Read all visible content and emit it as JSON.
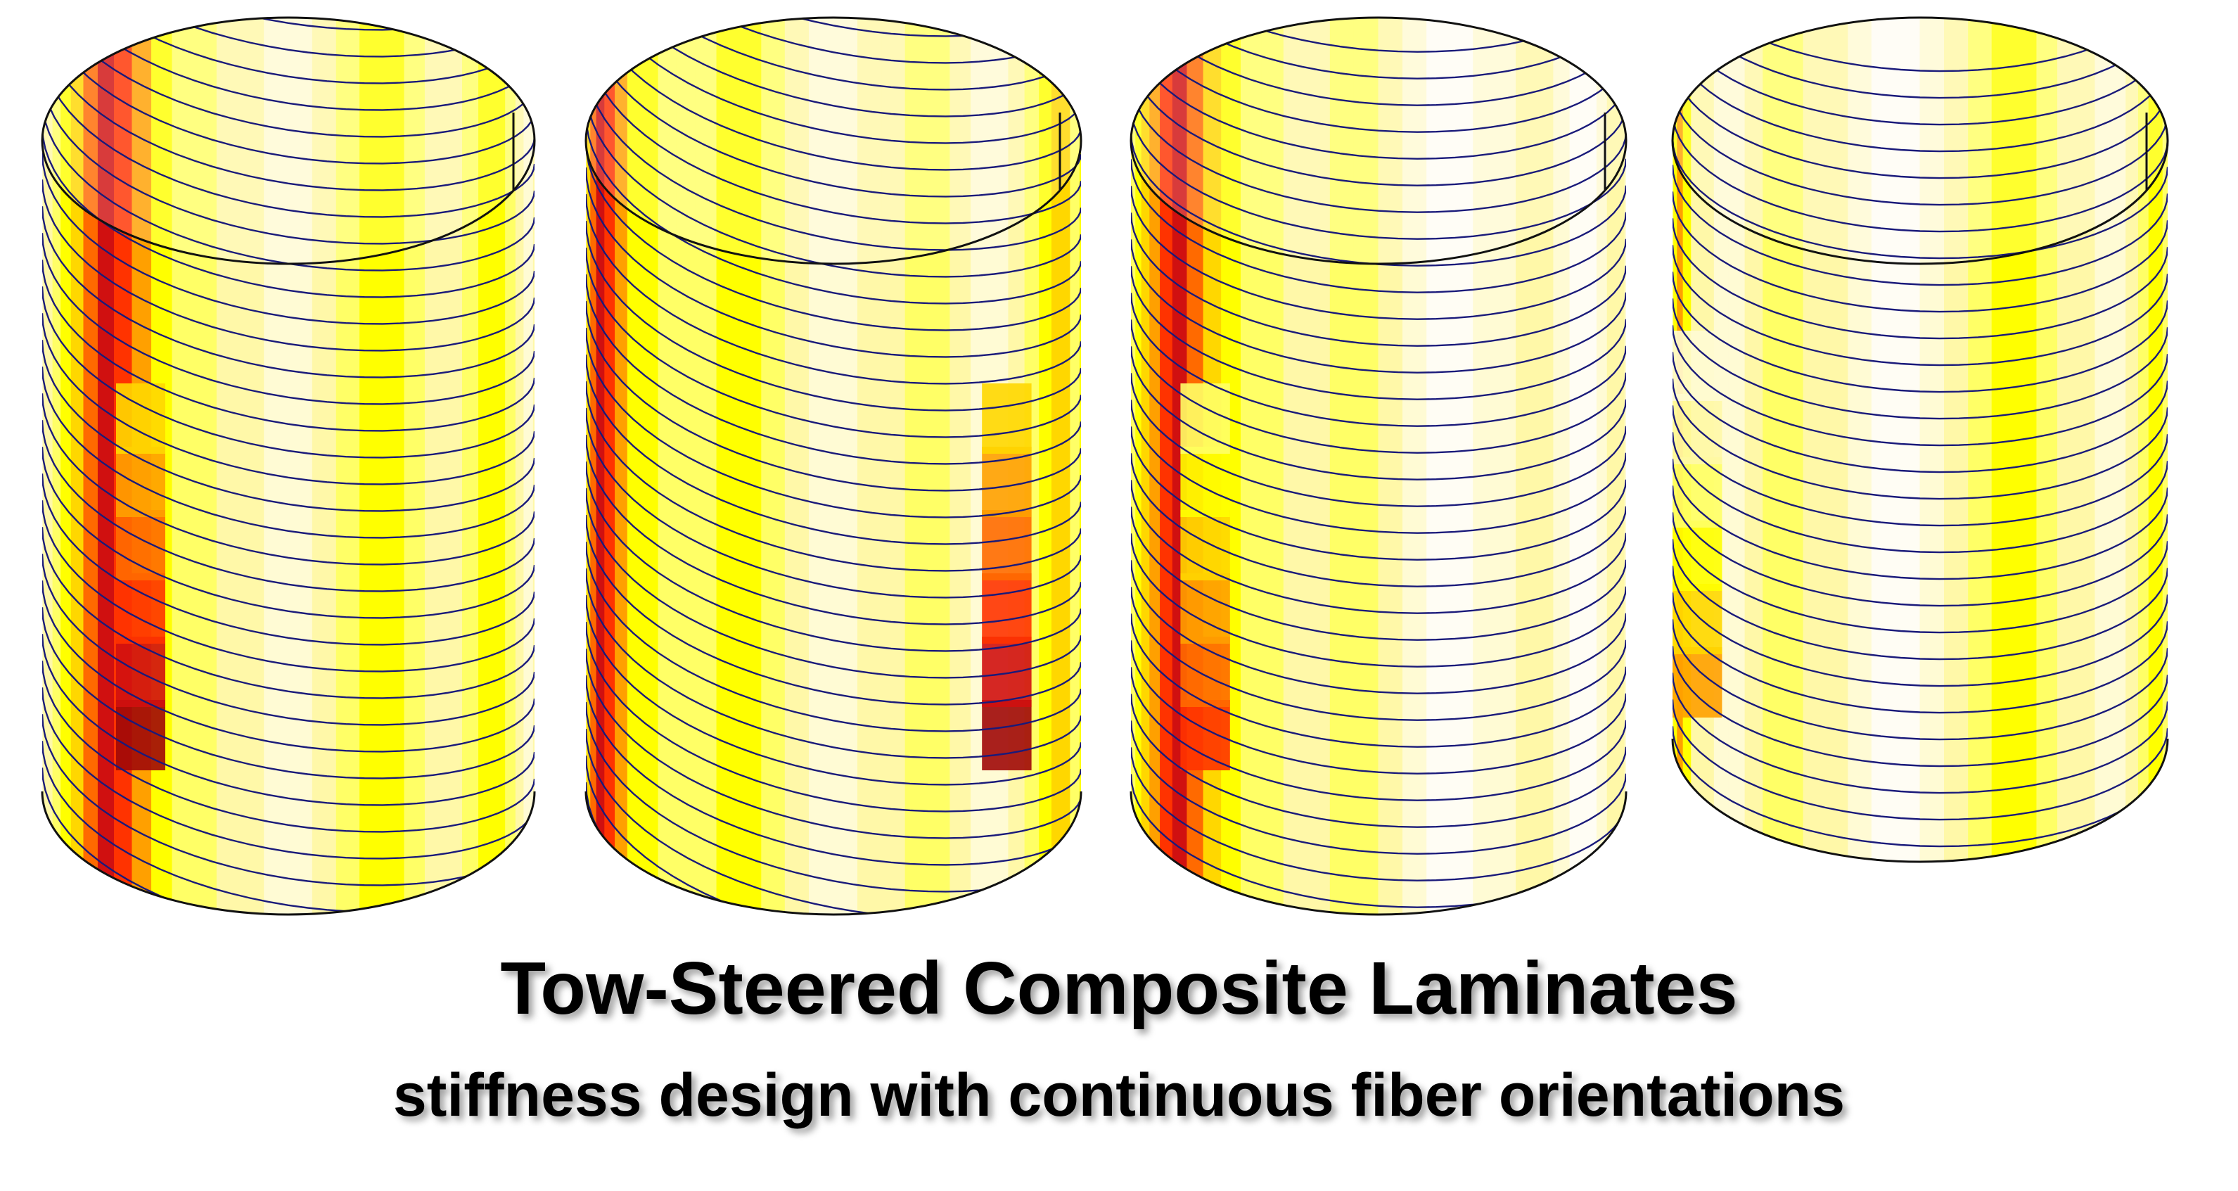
{
  "heading": {
    "title": "Tow-Steered Composite Laminates",
    "subtitle": "stiffness design with continuous fiber orientations"
  },
  "palette": {
    "fiber_line": "#1a1a7a",
    "outline": "#111111",
    "heat_scale": [
      "#fffdf4",
      "#fffbd4",
      "#fff8a8",
      "#ffff66",
      "#ffff00",
      "#ffd700",
      "#ffa000",
      "#ff6a00",
      "#ff3300",
      "#d01010",
      "#a00808"
    ]
  },
  "cylinders": [
    {
      "name": "cylinder-1",
      "fiber_angle_deg": 36,
      "bands": [
        1,
        2,
        2,
        3,
        4,
        5,
        7,
        9,
        8,
        6,
        4,
        3,
        3,
        2,
        2,
        1,
        1,
        2,
        3,
        4,
        4,
        3,
        2,
        2,
        3,
        4,
        4,
        3,
        2,
        1,
        1,
        2
      ],
      "hotspot": {
        "center_frac": 0.2,
        "level": 10
      }
    },
    {
      "name": "cylinder-2",
      "fiber_angle_deg": 42,
      "bands": [
        3,
        5,
        7,
        9,
        8,
        6,
        4,
        4,
        3,
        3,
        3,
        4,
        4,
        3,
        2,
        1,
        1,
        2,
        2,
        3,
        3,
        2,
        1,
        1,
        2,
        3,
        4,
        5,
        5,
        3,
        3,
        4
      ],
      "hotspot": {
        "center_frac": 0.85,
        "level": 10
      }
    },
    {
      "name": "cylinder-3",
      "fiber_angle_deg": 18,
      "bands": [
        3,
        3,
        4,
        5,
        6,
        8,
        9,
        7,
        5,
        4,
        3,
        3,
        2,
        2,
        3,
        3,
        2,
        1,
        0,
        0,
        1,
        1,
        2,
        2,
        1,
        0,
        0,
        1,
        2,
        2,
        2,
        1
      ],
      "hotspot": {
        "center_frac": 0.15,
        "level": 8
      }
    },
    {
      "name": "cylinder-4",
      "fiber_angle_deg": 10,
      "bands": [
        3,
        4,
        6,
        4,
        2,
        2,
        1,
        1,
        2,
        3,
        3,
        2,
        2,
        1,
        0,
        0,
        1,
        2,
        3,
        4,
        4,
        3,
        2,
        2,
        1,
        1,
        2,
        3,
        4,
        4,
        3,
        3
      ],
      "hotspot": {
        "center_frac": 0.05,
        "level": 6
      }
    }
  ]
}
